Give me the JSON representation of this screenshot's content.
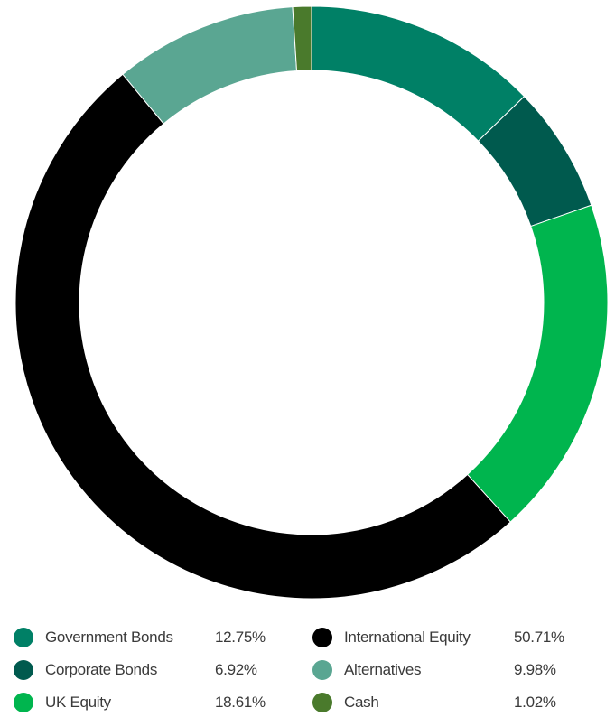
{
  "chart_data": {
    "type": "pie",
    "title": "",
    "donut": true,
    "legend_position": "bottom",
    "categories": [
      "Government Bonds",
      "Corporate Bonds",
      "UK Equity",
      "International Equity",
      "Alternatives",
      "Cash"
    ],
    "values": [
      12.75,
      6.92,
      18.61,
      50.71,
      9.98,
      1.02
    ],
    "value_labels": [
      "12.75%",
      "6.92%",
      "18.61%",
      "50.71%",
      "9.98%",
      "1.02%"
    ],
    "colors": [
      "#008066",
      "#005a4e",
      "#00b54e",
      "#000000",
      "#5aa692",
      "#4a7a2c"
    ]
  }
}
